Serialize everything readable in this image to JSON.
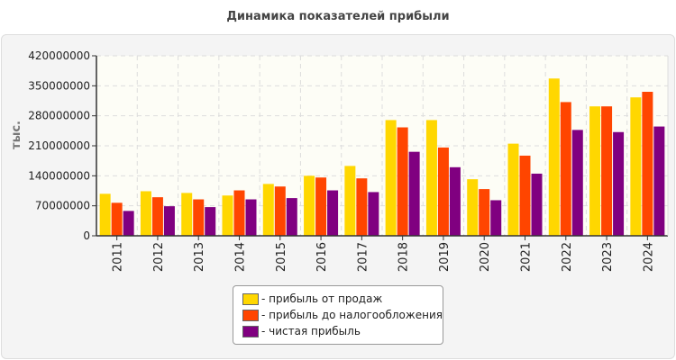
{
  "chart_data": {
    "type": "bar",
    "title": "Динамика показателей прибыли",
    "ylabel": "тыс.",
    "xlabel": "",
    "ylim": [
      0,
      420000000
    ],
    "yticks": [
      0,
      70000000,
      140000000,
      210000000,
      280000000,
      350000000,
      420000000
    ],
    "grid": true,
    "legend_position": "bottom",
    "categories": [
      "2011",
      "2012",
      "2013",
      "2014",
      "2015",
      "2016",
      "2017",
      "2018",
      "2019",
      "2020",
      "2021",
      "2022",
      "2023",
      "2024"
    ],
    "series": [
      {
        "name": "- прибыль от продаж",
        "color": "#FFD700",
        "values": [
          98000000,
          104000000,
          100000000,
          94000000,
          121000000,
          140000000,
          163000000,
          270000000,
          270000000,
          132000000,
          215000000,
          367000000,
          302000000,
          323000000
        ]
      },
      {
        "name": "- прибыль до налогообложения",
        "color": "#FF4500",
        "values": [
          77000000,
          90000000,
          85000000,
          106000000,
          115000000,
          136000000,
          134000000,
          253000000,
          206000000,
          109000000,
          187000000,
          312000000,
          302000000,
          336000000
        ]
      },
      {
        "name": "- чистая прибыль",
        "color": "#800080",
        "values": [
          58000000,
          69000000,
          67000000,
          85000000,
          88000000,
          106000000,
          102000000,
          196000000,
          160000000,
          83000000,
          145000000,
          247000000,
          242000000,
          255000000
        ]
      }
    ]
  }
}
